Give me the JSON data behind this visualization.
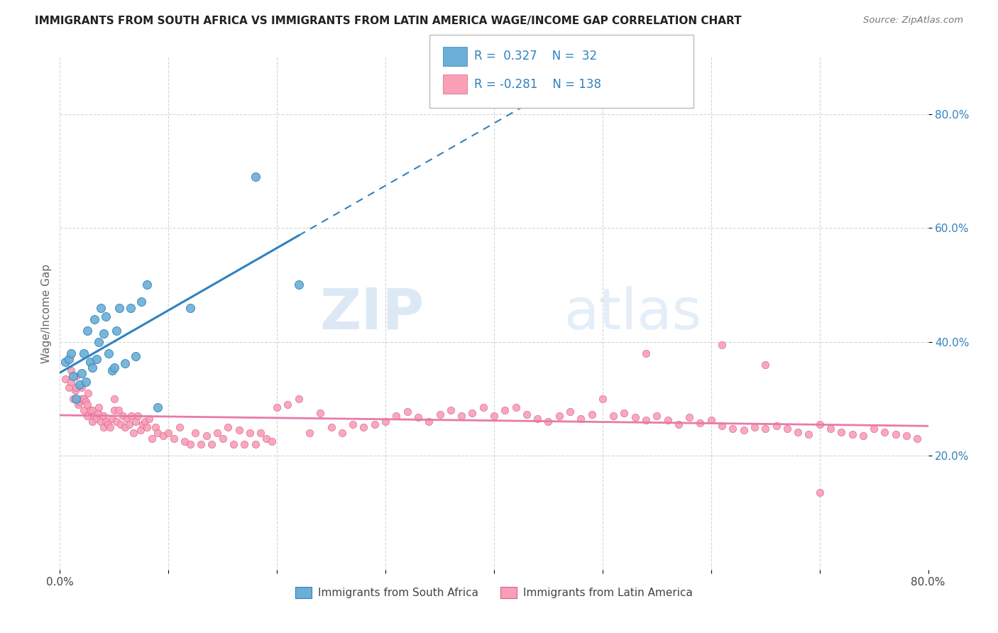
{
  "title": "IMMIGRANTS FROM SOUTH AFRICA VS IMMIGRANTS FROM LATIN AMERICA WAGE/INCOME GAP CORRELATION CHART",
  "source": "Source: ZipAtlas.com",
  "ylabel": "Wage/Income Gap",
  "xmin": 0.0,
  "xmax": 0.8,
  "ymin": 0.0,
  "ymax": 0.9,
  "yticks": [
    0.2,
    0.4,
    0.6,
    0.8
  ],
  "ytick_labels": [
    "20.0%",
    "40.0%",
    "60.0%",
    "80.0%"
  ],
  "watermark_zip": "ZIP",
  "watermark_atlas": "atlas",
  "legend_r1": "R =  0.327",
  "legend_n1": "N =  32",
  "legend_r2": "R = -0.281",
  "legend_n2": "N = 138",
  "color_blue": "#6baed6",
  "color_pink": "#fa9fb5",
  "color_blue_line": "#3182bd",
  "color_pink_line": "#e87aaa",
  "color_text_blue": "#3182bd",
  "sa_x": [
    0.005,
    0.008,
    0.01,
    0.012,
    0.015,
    0.018,
    0.02,
    0.022,
    0.024,
    0.025,
    0.028,
    0.03,
    0.032,
    0.034,
    0.036,
    0.038,
    0.04,
    0.042,
    0.045,
    0.048,
    0.05,
    0.052,
    0.055,
    0.06,
    0.065,
    0.07,
    0.075,
    0.08,
    0.09,
    0.12,
    0.18,
    0.22
  ],
  "sa_y": [
    0.365,
    0.37,
    0.38,
    0.34,
    0.3,
    0.325,
    0.345,
    0.38,
    0.33,
    0.42,
    0.365,
    0.355,
    0.44,
    0.37,
    0.4,
    0.46,
    0.415,
    0.445,
    0.38,
    0.35,
    0.355,
    0.42,
    0.46,
    0.362,
    0.46,
    0.375,
    0.47,
    0.5,
    0.285,
    0.46,
    0.69,
    0.5
  ],
  "la_x": [
    0.005,
    0.008,
    0.01,
    0.01,
    0.012,
    0.014,
    0.015,
    0.015,
    0.017,
    0.018,
    0.02,
    0.02,
    0.022,
    0.022,
    0.024,
    0.025,
    0.025,
    0.026,
    0.028,
    0.03,
    0.03,
    0.032,
    0.034,
    0.035,
    0.036,
    0.038,
    0.04,
    0.04,
    0.042,
    0.044,
    0.046,
    0.048,
    0.05,
    0.05,
    0.052,
    0.054,
    0.056,
    0.058,
    0.06,
    0.062,
    0.064,
    0.066,
    0.068,
    0.07,
    0.072,
    0.074,
    0.076,
    0.078,
    0.08,
    0.082,
    0.085,
    0.088,
    0.09,
    0.095,
    0.1,
    0.105,
    0.11,
    0.115,
    0.12,
    0.125,
    0.13,
    0.135,
    0.14,
    0.145,
    0.15,
    0.155,
    0.16,
    0.165,
    0.17,
    0.175,
    0.18,
    0.185,
    0.19,
    0.195,
    0.2,
    0.21,
    0.22,
    0.23,
    0.24,
    0.25,
    0.26,
    0.27,
    0.28,
    0.29,
    0.3,
    0.31,
    0.32,
    0.33,
    0.34,
    0.35,
    0.36,
    0.37,
    0.38,
    0.39,
    0.4,
    0.41,
    0.42,
    0.43,
    0.44,
    0.45,
    0.46,
    0.47,
    0.48,
    0.49,
    0.5,
    0.51,
    0.52,
    0.53,
    0.54,
    0.55,
    0.56,
    0.57,
    0.58,
    0.59,
    0.6,
    0.61,
    0.62,
    0.63,
    0.64,
    0.65,
    0.66,
    0.67,
    0.68,
    0.69,
    0.7,
    0.71,
    0.72,
    0.73,
    0.74,
    0.75,
    0.76,
    0.77,
    0.78,
    0.79,
    0.54,
    0.61,
    0.65,
    0.7
  ],
  "la_y": [
    0.335,
    0.32,
    0.33,
    0.35,
    0.3,
    0.315,
    0.32,
    0.34,
    0.29,
    0.295,
    0.3,
    0.32,
    0.28,
    0.3,
    0.295,
    0.27,
    0.29,
    0.31,
    0.28,
    0.26,
    0.28,
    0.27,
    0.265,
    0.275,
    0.285,
    0.26,
    0.25,
    0.27,
    0.26,
    0.255,
    0.25,
    0.265,
    0.28,
    0.3,
    0.26,
    0.28,
    0.255,
    0.27,
    0.25,
    0.265,
    0.255,
    0.27,
    0.24,
    0.26,
    0.27,
    0.245,
    0.255,
    0.26,
    0.25,
    0.265,
    0.23,
    0.25,
    0.24,
    0.235,
    0.24,
    0.23,
    0.25,
    0.225,
    0.22,
    0.24,
    0.22,
    0.235,
    0.22,
    0.24,
    0.23,
    0.25,
    0.22,
    0.245,
    0.22,
    0.24,
    0.22,
    0.24,
    0.23,
    0.225,
    0.285,
    0.29,
    0.3,
    0.24,
    0.275,
    0.25,
    0.24,
    0.255,
    0.25,
    0.255,
    0.26,
    0.27,
    0.278,
    0.268,
    0.26,
    0.272,
    0.28,
    0.27,
    0.275,
    0.285,
    0.27,
    0.28,
    0.285,
    0.272,
    0.265,
    0.26,
    0.27,
    0.278,
    0.265,
    0.272,
    0.3,
    0.27,
    0.275,
    0.268,
    0.262,
    0.27,
    0.262,
    0.255,
    0.268,
    0.258,
    0.262,
    0.252,
    0.248,
    0.245,
    0.25,
    0.248,
    0.252,
    0.248,
    0.242,
    0.238,
    0.255,
    0.248,
    0.242,
    0.238,
    0.235,
    0.248,
    0.242,
    0.238,
    0.235,
    0.23,
    0.38,
    0.395,
    0.36,
    0.135
  ]
}
